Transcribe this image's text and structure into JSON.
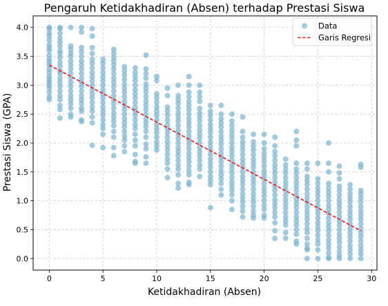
{
  "chart_data": {
    "type": "scatter",
    "title": "Pengaruh Ketidakhadiran (Absen) terhadap Prestasi Siswa",
    "xlabel": "Ketidakhadiran (Absen)",
    "ylabel": "Prestasi Siswa (GPA)",
    "xlim": [
      -1.5,
      30.5
    ],
    "ylim": [
      -0.2,
      4.2
    ],
    "xticks": [
      0,
      5,
      10,
      15,
      20,
      25,
      30
    ],
    "yticks": [
      0.0,
      0.5,
      1.0,
      1.5,
      2.0,
      2.5,
      3.0,
      3.5,
      4.0
    ],
    "ytick_labels": [
      "0.0",
      "0.5",
      "1.0",
      "1.5",
      "2.0",
      "2.5",
      "3.0",
      "3.5",
      "4.0"
    ],
    "grid": true,
    "legend_position": "top-right",
    "series": [
      {
        "name": "Data",
        "kind": "scatter",
        "color": "#7ab3d0",
        "columns": [
          {
            "x": 0,
            "y": [
              4.0,
              3.97,
              3.9,
              3.85,
              3.78,
              3.7,
              3.65,
              3.6,
              3.52,
              3.45,
              3.4,
              3.35,
              3.28,
              3.22,
              3.15,
              3.1,
              3.05,
              3.0,
              2.95,
              2.88,
              2.8,
              2.75
            ]
          },
          {
            "x": 1,
            "y": [
              4.0,
              3.98,
              3.9,
              3.82,
              3.75,
              3.68,
              3.6,
              3.55,
              3.48,
              3.4,
              3.33,
              3.25,
              3.2,
              3.12,
              3.05,
              2.98,
              2.9,
              2.82,
              2.75,
              2.65,
              2.58,
              2.43
            ]
          },
          {
            "x": 2,
            "y": [
              4.0,
              3.68,
              3.62,
              3.55,
              3.5,
              3.42,
              3.35,
              3.28,
              3.2,
              3.12,
              3.05,
              2.98,
              2.9,
              2.82,
              2.75,
              2.68,
              2.6,
              2.5,
              2.45
            ]
          },
          {
            "x": 3,
            "y": [
              4.0,
              3.92,
              3.65,
              3.58,
              3.5,
              3.42,
              3.35,
              3.28,
              3.2,
              3.12,
              3.05,
              2.98,
              2.9,
              2.82,
              2.75,
              2.68,
              2.6,
              2.55,
              2.4,
              2.37
            ]
          },
          {
            "x": 4,
            "y": [
              3.98,
              3.85,
              3.65,
              3.55,
              3.45,
              3.38,
              3.3,
              3.22,
              3.15,
              3.08,
              3.0,
              2.92,
              2.85,
              2.78,
              2.7,
              2.62,
              2.55,
              2.45,
              2.35,
              1.96
            ]
          },
          {
            "x": 5,
            "y": [
              3.45,
              3.38,
              3.3,
              3.22,
              3.15,
              3.08,
              3.0,
              2.92,
              2.85,
              2.78,
              2.7,
              2.62,
              2.55,
              2.48,
              2.4,
              2.32,
              2.25,
              2.15,
              1.92
            ]
          },
          {
            "x": 6,
            "y": [
              3.62,
              3.55,
              3.48,
              3.42,
              3.35,
              3.28,
              3.2,
              3.12,
              3.05,
              2.98,
              2.9,
              2.82,
              2.75,
              2.68,
              2.6,
              2.52,
              2.45,
              2.38,
              2.3,
              2.2,
              2.1,
              1.92,
              1.78
            ]
          },
          {
            "x": 7,
            "y": [
              3.32,
              3.25,
              3.18,
              3.1,
              3.02,
              2.95,
              2.88,
              2.8,
              2.72,
              2.65,
              2.58,
              2.5,
              2.42,
              2.35,
              2.28,
              2.2,
              2.12,
              2.05,
              1.95,
              1.85
            ]
          },
          {
            "x": 8,
            "y": [
              3.3,
              3.22,
              3.15,
              3.08,
              3.0,
              2.92,
              2.85,
              2.78,
              2.7,
              2.62,
              2.55,
              2.48,
              2.4,
              2.32,
              2.25,
              2.15,
              2.05,
              1.95,
              1.8,
              1.68,
              1.65
            ]
          },
          {
            "x": 9,
            "y": [
              3.52,
              3.28,
              3.2,
              3.12,
              3.02,
              2.95,
              2.88,
              2.8,
              2.72,
              2.65,
              2.58,
              2.5,
              2.42,
              2.35,
              2.28,
              2.2,
              2.1,
              1.98,
              1.9,
              1.76,
              1.65
            ]
          },
          {
            "x": 10,
            "y": [
              3.15,
              3.08,
              2.85,
              2.78,
              2.7,
              2.62,
              2.55,
              2.48,
              2.4,
              2.32,
              2.25,
              2.18,
              2.1,
              2.02,
              1.95,
              1.88
            ]
          },
          {
            "x": 11,
            "y": [
              2.95,
              2.82,
              2.62,
              2.55,
              2.48,
              2.4,
              2.32,
              2.25,
              2.18,
              2.1,
              2.02,
              1.95,
              1.88,
              1.8,
              1.72,
              1.65,
              1.55,
              1.4
            ]
          },
          {
            "x": 12,
            "y": [
              3.0,
              2.82,
              2.75,
              2.68,
              2.6,
              2.52,
              2.45,
              2.38,
              2.3,
              2.22,
              2.15,
              2.08,
              2.0,
              1.92,
              1.85,
              1.78,
              1.7,
              1.62,
              1.55,
              1.45,
              1.3,
              1.22
            ]
          },
          {
            "x": 13,
            "y": [
              3.15,
              3.0,
              2.88,
              2.8,
              2.72,
              2.65,
              2.58,
              2.5,
              2.42,
              2.35,
              2.28,
              2.2,
              2.12,
              2.05,
              1.98,
              1.9,
              1.82,
              1.75,
              1.68,
              1.6,
              1.52,
              1.45,
              1.32,
              1.28
            ]
          },
          {
            "x": 14,
            "y": [
              3.0,
              2.88,
              2.8,
              2.72,
              2.6,
              2.52,
              2.45,
              2.38,
              2.3,
              2.22,
              2.15,
              2.08,
              2.0,
              1.92,
              1.85,
              1.78,
              1.7,
              1.62,
              1.55,
              1.42
            ]
          },
          {
            "x": 15,
            "y": [
              2.65,
              2.55,
              2.48,
              2.4,
              2.32,
              2.25,
              2.18,
              2.1,
              2.02,
              1.95,
              1.88,
              1.8,
              1.72,
              1.65,
              1.58,
              1.5,
              1.42,
              1.35,
              1.28,
              0.88
            ]
          },
          {
            "x": 16,
            "y": [
              2.65,
              2.5,
              2.42,
              2.35,
              2.28,
              2.2,
              2.12,
              2.05,
              1.98,
              1.9,
              1.82,
              1.75,
              1.68,
              1.6,
              1.52,
              1.45,
              1.38,
              1.3,
              1.2,
              1.1
            ]
          },
          {
            "x": 17,
            "y": [
              2.5,
              2.38,
              2.3,
              2.22,
              2.15,
              2.08,
              2.0,
              1.92,
              1.85,
              1.78,
              1.7,
              1.62,
              1.55,
              1.48,
              1.4,
              1.32,
              1.25,
              1.18,
              1.1,
              1.0,
              0.85
            ]
          },
          {
            "x": 18,
            "y": [
              2.45,
              2.2,
              2.1,
              2.02,
              1.95,
              1.88,
              1.8,
              1.72,
              1.65,
              1.58,
              1.5,
              1.42,
              1.35,
              1.28,
              1.2,
              1.12,
              1.05,
              0.98,
              0.9,
              0.82,
              0.72
            ]
          },
          {
            "x": 19,
            "y": [
              2.15,
              2.02,
              1.95,
              1.88,
              1.8,
              1.72,
              1.65,
              1.58,
              1.5,
              1.42,
              1.35,
              1.28,
              1.2,
              1.12,
              1.05,
              0.98,
              0.9,
              0.82,
              0.75,
              0.7
            ]
          },
          {
            "x": 20,
            "y": [
              2.15,
              2.0,
              1.9,
              1.82,
              1.75,
              1.68,
              1.6,
              1.52,
              1.45,
              1.38,
              1.3,
              1.22,
              1.15,
              1.08,
              1.0,
              0.92,
              0.85,
              0.75,
              0.7
            ]
          },
          {
            "x": 21,
            "y": [
              2.1,
              1.95,
              1.85,
              1.78,
              1.7,
              1.62,
              1.55,
              1.48,
              1.4,
              1.32,
              1.25,
              1.18,
              1.1,
              1.02,
              0.95,
              0.88,
              0.8,
              0.72,
              0.62,
              0.48,
              0.35
            ]
          },
          {
            "x": 22,
            "y": [
              1.72,
              1.62,
              1.55,
              1.48,
              1.4,
              1.32,
              1.25,
              1.18,
              1.1,
              1.02,
              0.95,
              0.88,
              0.8,
              0.72,
              0.65,
              0.58,
              0.45,
              0.35
            ]
          },
          {
            "x": 23,
            "y": [
              2.2,
              2.05,
              1.95,
              1.65,
              1.55,
              1.48,
              1.4,
              1.32,
              1.25,
              1.18,
              1.1,
              1.02,
              0.95,
              0.88,
              0.8,
              0.72,
              0.65,
              0.58,
              0.5,
              0.42,
              0.3,
              0.25
            ]
          },
          {
            "x": 24,
            "y": [
              1.65,
              1.55,
              1.42,
              1.35,
              1.28,
              1.2,
              1.12,
              1.05,
              0.98,
              0.9,
              0.82,
              0.75,
              0.68,
              0.6,
              0.52,
              0.45,
              0.35,
              0.25,
              0.18,
              0.15,
              0.0
            ]
          },
          {
            "x": 25,
            "y": [
              1.65,
              1.38,
              1.3,
              1.22,
              1.15,
              1.08,
              1.0,
              0.92,
              0.85,
              0.78,
              0.7,
              0.62,
              0.55,
              0.48,
              0.4,
              0.32,
              0.25,
              0.15,
              0.0
            ]
          },
          {
            "x": 26,
            "y": [
              2.0,
              1.65,
              1.5,
              1.3,
              1.22,
              1.15,
              1.08,
              1.0,
              0.92,
              0.85,
              0.78,
              0.7,
              0.62,
              0.55,
              0.48,
              0.4,
              0.32,
              0.25,
              0.18,
              0.1,
              0.02,
              0.0
            ]
          },
          {
            "x": 27,
            "y": [
              1.6,
              1.48,
              1.38,
              1.25,
              1.18,
              1.1,
              1.02,
              0.95,
              0.88,
              0.8,
              0.72,
              0.65,
              0.58,
              0.5,
              0.42,
              0.35,
              0.28,
              0.2,
              0.12,
              0.05,
              0.0
            ]
          },
          {
            "x": 28,
            "y": [
              1.28,
              1.2,
              1.12,
              1.05,
              0.98,
              0.9,
              0.82,
              0.75,
              0.68,
              0.6,
              0.52,
              0.45,
              0.38,
              0.3,
              0.22,
              0.15,
              0.08,
              0.0
            ]
          },
          {
            "x": 29,
            "y": [
              1.63,
              1.58,
              1.18,
              1.12,
              1.05,
              0.98,
              0.9,
              0.82,
              0.75,
              0.68,
              0.6,
              0.52,
              0.45,
              0.38,
              0.3,
              0.22,
              0.15,
              0.08,
              0.0
            ]
          }
        ]
      },
      {
        "name": "Garis Regresi",
        "kind": "line",
        "color": "#e8191b",
        "dash": "dashed",
        "x": [
          0,
          29
        ],
        "y": [
          3.35,
          0.48
        ]
      }
    ]
  }
}
